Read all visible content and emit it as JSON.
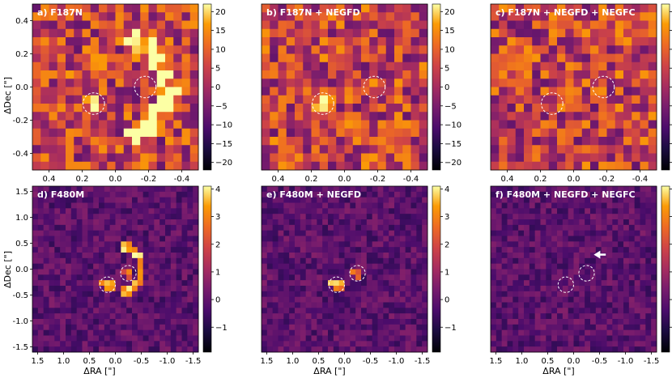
{
  "figure": {
    "panels": [
      {
        "id": "a",
        "title": "a) F187N",
        "row": 0,
        "col": 0
      },
      {
        "id": "b",
        "title": "b) F187N + NEGFD",
        "row": 0,
        "col": 1
      },
      {
        "id": "c",
        "title": "c) F187N + NEGFD + NEGFC",
        "row": 0,
        "col": 2
      },
      {
        "id": "d",
        "title": "d) F480M",
        "row": 1,
        "col": 0
      },
      {
        "id": "e",
        "title": "e) F480M + NEGFD",
        "row": 1,
        "col": 1
      },
      {
        "id": "f",
        "title": "f) F480M + NEGFD + NEGFC",
        "row": 1,
        "col": 2
      }
    ],
    "top_row": {
      "ylabel": "ΔDec [\"]",
      "x_ticks": [
        "0.4",
        "0.2",
        "0.0",
        "-0.2",
        "-0.4"
      ],
      "y_ticks": [
        "0.4",
        "0.2",
        "0.0",
        "-0.2",
        "-0.4"
      ],
      "colorbar_ticks": [
        "20",
        "15",
        "10",
        "5",
        "0",
        "−5",
        "−10",
        "−15",
        "−20"
      ],
      "colorbar_range": [
        -22,
        22
      ]
    },
    "bottom_row": {
      "ylabel": "ΔDec [\"]",
      "xlabel": "ΔRA [\"]",
      "x_ticks": [
        "1.5",
        "1.0",
        "0.5",
        "0.0",
        "-0.5",
        "-1.0",
        "-1.5"
      ],
      "y_ticks": [
        "1.5",
        "1.0",
        "0.5",
        "0.0",
        "-0.5",
        "-1.0",
        "-1.5"
      ],
      "colorbar_ticks": [
        "4",
        "3",
        "2",
        "1",
        "0",
        "−1"
      ],
      "colorbar_range": [
        -1.9,
        4.1
      ]
    },
    "colormap": "inferno",
    "circle_color": "#ffffff",
    "arrow_color": "#ffffff"
  }
}
